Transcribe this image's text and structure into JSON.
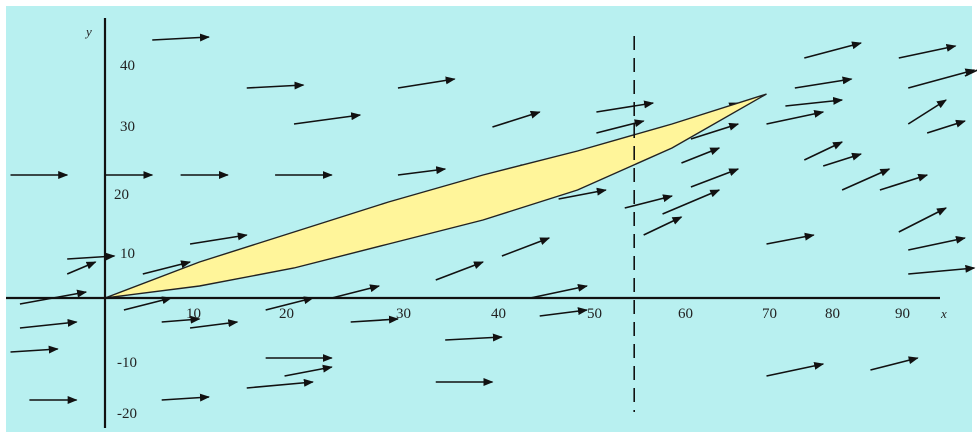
{
  "colors": {
    "background": "#b8f0f0",
    "axis": "#111111",
    "lens_fill": "#fff59a",
    "lens_stroke": "#222222",
    "arrow": "#111111"
  },
  "axes": {
    "x_label": "x",
    "y_label": "y",
    "x_ticks": [
      "10",
      "20",
      "30",
      "40",
      "50",
      "60",
      "70",
      "80",
      "90"
    ],
    "y_ticks": [
      "40",
      "30",
      "20",
      "10",
      "-10",
      "-20"
    ]
  },
  "chart_data": {
    "type": "vector_field",
    "x_range": [
      -11,
      95
    ],
    "y_range": [
      -22,
      46
    ],
    "vertical_dashed_line_x": 56,
    "lens_region": {
      "from": [
        0,
        0
      ],
      "to": [
        70,
        34
      ],
      "upper_edge": [
        [
          0,
          0
        ],
        [
          10,
          6
        ],
        [
          20,
          11
        ],
        [
          30,
          16
        ],
        [
          40,
          20.5
        ],
        [
          50,
          24.5
        ],
        [
          60,
          29
        ],
        [
          70,
          34
        ]
      ],
      "lower_edge": [
        [
          0,
          0
        ],
        [
          10,
          2
        ],
        [
          20,
          5
        ],
        [
          30,
          9
        ],
        [
          40,
          13
        ],
        [
          50,
          18
        ],
        [
          60,
          25
        ],
        [
          70,
          34
        ]
      ]
    },
    "arrows": [
      [
        5,
        43,
        11,
        43.5
      ],
      [
        15,
        35,
        21,
        35.5
      ],
      [
        31,
        35,
        37,
        36.5
      ],
      [
        20,
        29,
        27,
        30.5
      ],
      [
        41,
        28.5,
        46,
        31
      ],
      [
        52,
        31,
        58,
        32.5
      ],
      [
        52,
        27.5,
        57,
        29.5
      ],
      [
        53,
        24,
        58,
        25.5
      ],
      [
        -10,
        20.5,
        -4,
        20.5
      ],
      [
        0,
        20.5,
        5,
        20.5
      ],
      [
        8,
        20.5,
        13,
        20.5
      ],
      [
        18,
        20.5,
        24,
        20.5
      ],
      [
        31,
        20.5,
        36,
        21.5
      ],
      [
        41,
        20.5,
        45,
        22
      ],
      [
        48,
        18.5,
        53,
        20.5
      ],
      [
        48,
        16.5,
        53,
        18
      ],
      [
        61,
        22.5,
        65,
        25
      ],
      [
        62,
        18.5,
        67,
        21.5
      ],
      [
        59,
        14,
        65,
        18
      ],
      [
        57,
        10.5,
        61,
        13.5
      ],
      [
        62,
        26.5,
        67,
        29
      ],
      [
        63,
        30,
        67,
        32.5
      ],
      [
        70,
        29,
        76,
        31
      ],
      [
        72,
        32,
        78,
        33
      ],
      [
        73,
        35,
        79,
        36.5
      ],
      [
        74,
        40,
        80,
        42.5
      ],
      [
        84,
        40,
        90,
        42
      ],
      [
        85,
        35,
        92,
        38
      ],
      [
        91,
        37,
        95,
        40
      ],
      [
        85,
        29,
        89,
        33
      ],
      [
        87,
        27.5,
        91,
        29.5
      ],
      [
        74,
        23,
        78,
        26
      ],
      [
        76,
        22,
        80,
        24
      ],
      [
        78,
        18,
        83,
        21.5
      ],
      [
        82,
        18,
        87,
        20.5
      ],
      [
        70,
        9,
        75,
        10.5
      ],
      [
        84,
        11,
        89,
        15
      ],
      [
        85,
        8,
        91,
        10
      ],
      [
        85,
        4,
        92,
        5
      ],
      [
        -9,
        -1,
        -2,
        1
      ],
      [
        -4,
        4,
        -1,
        6
      ],
      [
        -4,
        6.5,
        1,
        7
      ],
      [
        -9,
        -5,
        -3,
        -4
      ],
      [
        -10,
        -9,
        -5,
        -8.5
      ],
      [
        -8,
        -17,
        -3,
        -17
      ],
      [
        2,
        -2,
        7,
        0
      ],
      [
        4,
        4,
        9,
        6
      ],
      [
        9,
        9,
        15,
        10.5
      ],
      [
        6,
        -4,
        10,
        -3.5
      ],
      [
        9,
        -5,
        14,
        -4
      ],
      [
        17,
        -2,
        22,
        0
      ],
      [
        24,
        0,
        29,
        2
      ],
      [
        26,
        -4,
        31,
        -3.5
      ],
      [
        35,
        3,
        40,
        6
      ],
      [
        42,
        7,
        47,
        10
      ],
      [
        45,
        0,
        51,
        2
      ],
      [
        46,
        -3,
        51,
        -2
      ],
      [
        36,
        -7,
        42,
        -6.5
      ],
      [
        17,
        -10,
        24,
        -10
      ],
      [
        19,
        -13,
        24,
        -11.5
      ],
      [
        6,
        -17,
        11,
        -16.5
      ],
      [
        15,
        -15,
        22,
        -14
      ],
      [
        35,
        -14,
        41,
        -14
      ],
      [
        70,
        -13,
        76,
        -11
      ],
      [
        81,
        -12,
        86,
        -10
      ],
      [
        55,
        15,
        60,
        17
      ]
    ]
  }
}
